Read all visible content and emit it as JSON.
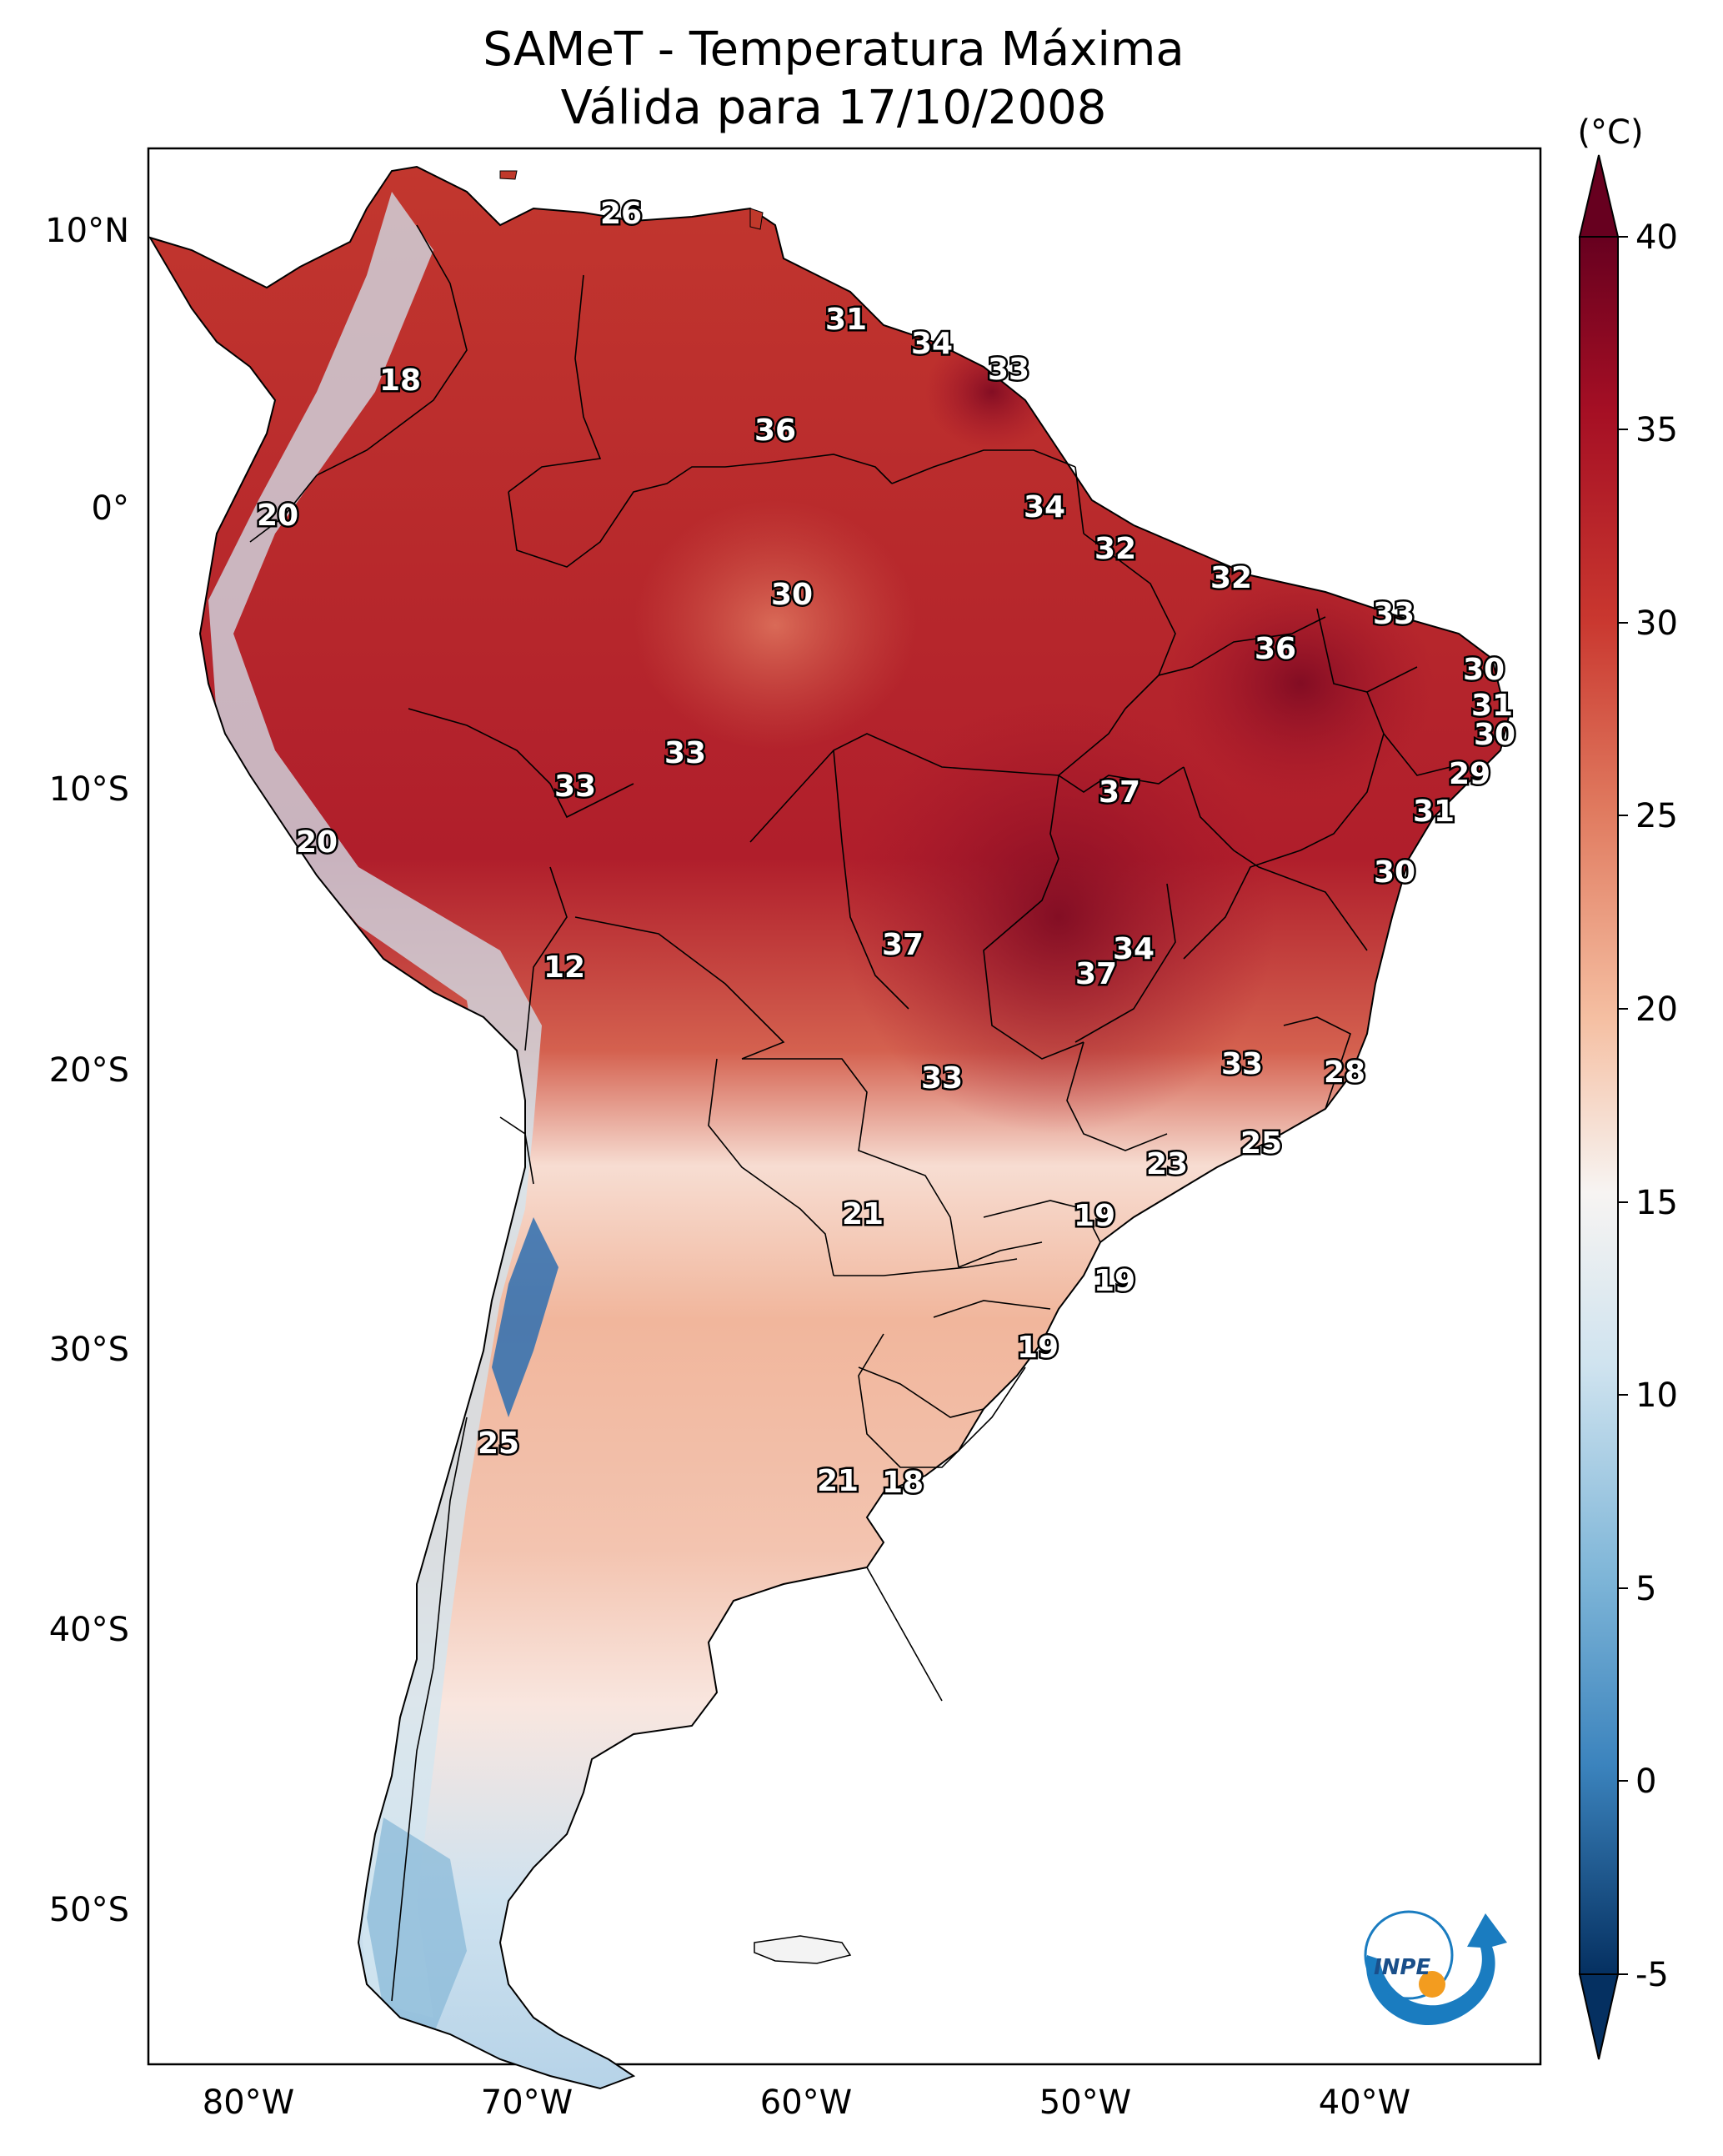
{
  "title_line1": "SAMeT - Temperatura Máxima",
  "title_line2": "Válida para 17/10/2008",
  "colorbar": {
    "unit": "(°C)",
    "ticks": [
      "40",
      "35",
      "30",
      "25",
      "20",
      "15",
      "10",
      "5",
      "0",
      "-5"
    ],
    "colors": {
      "hot": "#67001f",
      "warm": "#d6604d",
      "neutral": "#f7f7f7",
      "cool": "#92c5de",
      "cold": "#053061"
    }
  },
  "axes": {
    "lat_labels": [
      "10°N",
      "0°",
      "10°S",
      "20°S",
      "30°S",
      "40°S",
      "50°S"
    ],
    "lon_labels": [
      "80°W",
      "70°W",
      "60°W",
      "50°W",
      "40°W"
    ]
  },
  "logo": {
    "text": "INPE"
  },
  "stations": [
    "26",
    "31",
    "34",
    "33",
    "18",
    "36",
    "20",
    "34",
    "32",
    "30",
    "32",
    "33",
    "36",
    "30",
    "31",
    "30",
    "33",
    "33",
    "37",
    "29",
    "31",
    "20",
    "30",
    "37",
    "34",
    "37",
    "12",
    "33",
    "33",
    "28",
    "25",
    "23",
    "21",
    "19",
    "19",
    "19",
    "25",
    "21",
    "18"
  ]
}
